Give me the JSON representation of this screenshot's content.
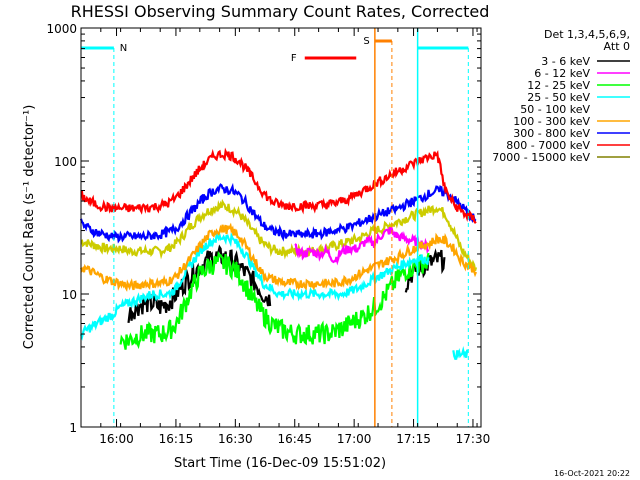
{
  "chart_data": {
    "type": "line",
    "title": "RHESSI Observing Summary Count Rates, Corrected",
    "xlabel": "Start Time (16-Dec-09 15:51:02)",
    "ylabel": "Corrected Count Rate (s⁻¹ detector⁻¹)",
    "yscale": "log",
    "ylim": [
      1,
      1000
    ],
    "xlim_minutes_after_15_51_02": [
      0,
      101
    ],
    "x_tick_labels": [
      "16:00",
      "16:15",
      "16:30",
      "16:45",
      "17:00",
      "17:15",
      "17:30"
    ],
    "x_tick_minutes_after_15_51_02": [
      8.97,
      23.97,
      38.97,
      53.97,
      68.97,
      83.97,
      98.97
    ],
    "y_tick_labels": [
      "1",
      "10",
      "100",
      "1000"
    ],
    "y_tick_values": [
      1,
      10,
      100,
      1000
    ],
    "legend_header": [
      "Det 1,3,4,5,6,9,",
      "Att 0"
    ],
    "legend_position": "right",
    "x_minutes_after_15_51_02": [
      0,
      2,
      4,
      6,
      8,
      10,
      12,
      14,
      16,
      18,
      20,
      22,
      24,
      26,
      28,
      30,
      32,
      34,
      36,
      38,
      40,
      42,
      44,
      46,
      48,
      50,
      52,
      54,
      56,
      58,
      60,
      62,
      64,
      66,
      68,
      70,
      72,
      74,
      76,
      78,
      80,
      82,
      84,
      86,
      88,
      90,
      92,
      94,
      96,
      98,
      100
    ],
    "series": [
      {
        "name": "3 - 6 keV",
        "color": "#000000",
        "values": [
          null,
          null,
          null,
          null,
          null,
          null,
          7,
          8,
          8.5,
          8.5,
          8,
          8.5,
          10,
          12,
          14,
          16,
          18,
          19,
          19,
          18,
          16,
          14,
          12,
          10,
          9,
          null,
          null,
          null,
          null,
          null,
          null,
          null,
          null,
          null,
          null,
          null,
          null,
          null,
          null,
          null,
          null,
          12,
          15,
          16,
          17,
          18,
          18,
          null,
          null,
          null,
          null
        ]
      },
      {
        "name": "6 - 12 keV",
        "color": "#ff00ff",
        "values": [
          null,
          null,
          null,
          null,
          null,
          null,
          null,
          null,
          null,
          null,
          null,
          null,
          null,
          null,
          null,
          null,
          null,
          null,
          null,
          null,
          null,
          null,
          null,
          null,
          null,
          null,
          null,
          22,
          20,
          21,
          20,
          21,
          18,
          21,
          22,
          22,
          25,
          24,
          28,
          30,
          27,
          26,
          25,
          24,
          22,
          null,
          null,
          null,
          null,
          null,
          null
        ]
      },
      {
        "name": "12 - 25 keV",
        "color": "#00ff00",
        "values": [
          null,
          null,
          null,
          null,
          null,
          4.5,
          4.5,
          4.8,
          5,
          5,
          5,
          5.2,
          6,
          8,
          11,
          14,
          16,
          17,
          17,
          16,
          14,
          11,
          8.5,
          7,
          6,
          5.5,
          5.2,
          5,
          5,
          5,
          5,
          5,
          5.2,
          5.5,
          6,
          6.5,
          7,
          8,
          9,
          11,
          13,
          15,
          16,
          17,
          17.5,
          null,
          null,
          null,
          null,
          null,
          null
        ]
      },
      {
        "name": "25 - 50 keV",
        "color": "#00ffff",
        "values": [
          5,
          5.5,
          6,
          6.5,
          7,
          8,
          8.5,
          9,
          9.5,
          10,
          10,
          10,
          11,
          14,
          17,
          21,
          24,
          26,
          27,
          26,
          23,
          19,
          15,
          12,
          11,
          10,
          10,
          10,
          10,
          10,
          10,
          10,
          10,
          10,
          10.5,
          11,
          12,
          13,
          14,
          15,
          16,
          17,
          18,
          18.5,
          18,
          null,
          null,
          3.5,
          3.5,
          3.5,
          null
        ]
      },
      {
        "name": "50 - 100 keV",
        "color": "#ffffff",
        "values": [
          null,
          null,
          null,
          null,
          null,
          null,
          null,
          null,
          null,
          null,
          null,
          null,
          null,
          null,
          null,
          null,
          null,
          null,
          null,
          null,
          null,
          null,
          null,
          null,
          null,
          null,
          null,
          null,
          null,
          null,
          null,
          null,
          null,
          null,
          null,
          null,
          null,
          null,
          null,
          null,
          null,
          null,
          null,
          null,
          null,
          null,
          null,
          null,
          null,
          null,
          null
        ]
      },
      {
        "name": "100 - 300 keV",
        "color": "#ffa500",
        "values": [
          16,
          15,
          14,
          13,
          12.5,
          12,
          11.5,
          11.5,
          12,
          12,
          12,
          12.5,
          13.5,
          16,
          19,
          23,
          27,
          30,
          31,
          30,
          27,
          22,
          17.5,
          14,
          13,
          12.5,
          12,
          12,
          12,
          12,
          12,
          12,
          12,
          12.5,
          13,
          14,
          15,
          16,
          17,
          18,
          19,
          20.5,
          22,
          23,
          24,
          26,
          25,
          22,
          18,
          16,
          15
        ]
      },
      {
        "name": "300 - 800 keV",
        "color": "#0000ff",
        "values": [
          34,
          31,
          29,
          28,
          27,
          27,
          27,
          27,
          27,
          27.5,
          28,
          29,
          31,
          36,
          42,
          49,
          56,
          61,
          62,
          60,
          55,
          47,
          39,
          33,
          30,
          29,
          28,
          28,
          28,
          28,
          28.5,
          29,
          30,
          31,
          32,
          34,
          36,
          38,
          40,
          42,
          44,
          47,
          50,
          53,
          57,
          60,
          58,
          52,
          46,
          40,
          35
        ]
      },
      {
        "name": "800 - 7000 keV",
        "color": "#ff0000",
        "values": [
          55,
          50,
          47,
          45,
          44,
          44,
          44,
          44,
          45,
          45,
          46,
          48,
          53,
          62,
          74,
          87,
          100,
          110,
          113,
          110,
          100,
          85,
          70,
          58,
          50,
          47,
          46,
          46,
          46,
          46,
          46.5,
          47,
          48,
          50,
          53,
          57,
          62,
          67,
          72,
          78,
          84,
          90,
          96,
          102,
          108,
          112,
          60,
          48,
          42,
          38,
          36
        ]
      },
      {
        "name": "7000 - 15000 keV",
        "color": "#808000",
        "values": [
          null,
          null,
          null,
          null,
          null,
          null,
          null,
          null,
          null,
          null,
          null,
          null,
          null,
          null,
          null,
          null,
          null,
          null,
          null,
          null,
          null,
          null,
          null,
          null,
          null,
          null,
          null,
          null,
          null,
          null,
          null,
          null,
          null,
          null,
          null,
          null,
          null,
          null,
          null,
          null,
          null,
          null,
          null,
          null,
          null,
          null,
          null,
          null,
          null,
          null,
          null
        ]
      }
    ],
    "extra_series": [
      {
        "name": "",
        "color": "#cccc00",
        "values": [
          25,
          24,
          23,
          22,
          22,
          22,
          21,
          21,
          21,
          21,
          21,
          22,
          24,
          28,
          33,
          38,
          42,
          45,
          46,
          44,
          40,
          34,
          28,
          24,
          22,
          21,
          21,
          21,
          21,
          21,
          21.5,
          22,
          23,
          24,
          25,
          26,
          28,
          30,
          31,
          33,
          35,
          37,
          39,
          41,
          43,
          45,
          40,
          30,
          22,
          18,
          15
        ]
      }
    ],
    "annotations": [
      {
        "text": "N",
        "color": "#00ffff"
      },
      {
        "text": "F",
        "color": "#ff0000"
      },
      {
        "text": "S",
        "color": "#ff8000"
      }
    ],
    "timestamp": "16-Oct-2021 20:22"
  }
}
